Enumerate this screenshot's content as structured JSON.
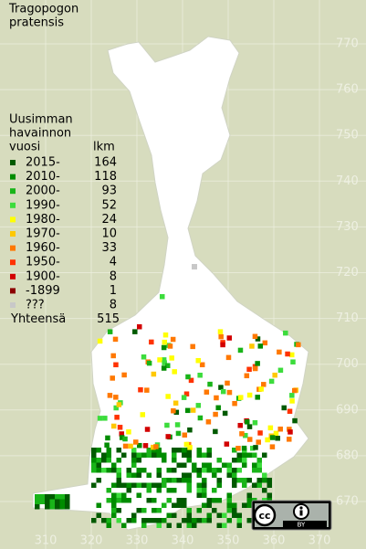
{
  "title": [
    "Tragopogon",
    "pratensis"
  ],
  "legend": {
    "heading": [
      "Uusimman",
      "havainnon",
      "vuosi"
    ],
    "count_heading": "lkm",
    "entries": [
      {
        "label": "2015-",
        "count": 164,
        "color": "#005a00"
      },
      {
        "label": "2010-",
        "count": 118,
        "color": "#008c00"
      },
      {
        "label": "2000-",
        "count": 93,
        "color": "#19b419"
      },
      {
        "label": "1990-",
        "count": 52,
        "color": "#3cdc3c"
      },
      {
        "label": "1980-",
        "count": 24,
        "color": "#ffff00"
      },
      {
        "label": "1970-",
        "count": 10,
        "color": "#ffc800"
      },
      {
        "label": "1960-",
        "count": 33,
        "color": "#ff7800"
      },
      {
        "label": "1950-",
        "count": 4,
        "color": "#ff3200"
      },
      {
        "label": "1900-",
        "count": 8,
        "color": "#d20000"
      },
      {
        "label": "-1899",
        "count": 1,
        "color": "#8c0000"
      },
      {
        "label": "???",
        "count": 8,
        "color": "#c8c8c8"
      }
    ],
    "total_label": "Yhteensä",
    "total": 515
  },
  "axes": {
    "y_ticks": [
      770,
      760,
      750,
      740,
      730,
      720,
      710,
      700,
      690,
      680,
      670
    ],
    "x_ticks": [
      310,
      320,
      330,
      340,
      350,
      360,
      370
    ]
  },
  "license": {
    "cc": "cc",
    "by": "BY"
  }
}
